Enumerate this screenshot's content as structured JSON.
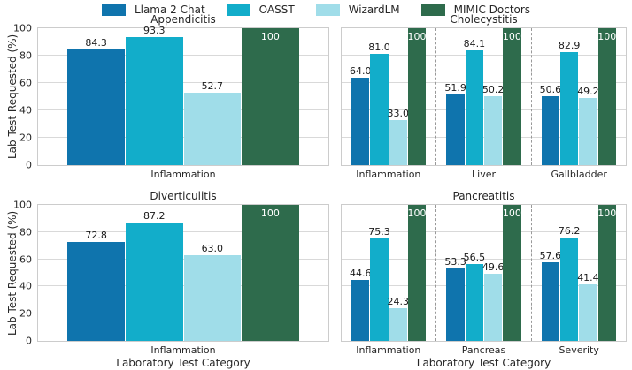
{
  "legend": {
    "items": [
      {
        "label": "Llama 2 Chat",
        "color": "#0f74ad"
      },
      {
        "label": "OASST",
        "color": "#12adca"
      },
      {
        "label": "WizardLM",
        "color": "#a0dde9"
      },
      {
        "label": "MIMIC Doctors",
        "color": "#2e6b4c"
      }
    ]
  },
  "axes": {
    "ylabel": "Lab Test Requested (%)",
    "xlabel": "Laboratory Test Category",
    "yticks": [
      0,
      20,
      40,
      60,
      80,
      100
    ],
    "ylim": [
      0,
      100
    ],
    "grid": "horizontal",
    "grid_color": "#d9d9d9",
    "spine_color": "#cccccc",
    "separator_style": "dashed"
  },
  "chart_data": [
    {
      "type": "bar",
      "title": "Appendicitis",
      "categories": [
        "Inflammation"
      ],
      "series": [
        {
          "name": "Llama 2 Chat",
          "values": [
            84.3
          ]
        },
        {
          "name": "OASST",
          "values": [
            93.3
          ]
        },
        {
          "name": "WizardLM",
          "values": [
            52.7
          ]
        },
        {
          "name": "MIMIC Doctors",
          "values": [
            100
          ],
          "label_inside": true
        }
      ]
    },
    {
      "type": "bar",
      "title": "Cholecystitis",
      "categories": [
        "Inflammation",
        "Liver",
        "Gallbladder"
      ],
      "series": [
        {
          "name": "Llama 2 Chat",
          "values": [
            64.0,
            51.9,
            50.6
          ]
        },
        {
          "name": "OASST",
          "values": [
            81.0,
            84.1,
            82.9
          ]
        },
        {
          "name": "WizardLM",
          "values": [
            33.0,
            50.2,
            49.2
          ]
        },
        {
          "name": "MIMIC Doctors",
          "values": [
            100,
            100,
            100
          ],
          "label_inside": true
        }
      ]
    },
    {
      "type": "bar",
      "title": "Diverticulitis",
      "categories": [
        "Inflammation"
      ],
      "series": [
        {
          "name": "Llama 2 Chat",
          "values": [
            72.8
          ]
        },
        {
          "name": "OASST",
          "values": [
            87.2
          ]
        },
        {
          "name": "WizardLM",
          "values": [
            63.0
          ]
        },
        {
          "name": "MIMIC Doctors",
          "values": [
            100
          ],
          "label_inside": true
        }
      ]
    },
    {
      "type": "bar",
      "title": "Pancreatitis",
      "categories": [
        "Inflammation",
        "Pancreas",
        "Severity"
      ],
      "series": [
        {
          "name": "Llama 2 Chat",
          "values": [
            44.6,
            53.3,
            57.6
          ]
        },
        {
          "name": "OASST",
          "values": [
            75.3,
            56.5,
            76.2
          ]
        },
        {
          "name": "WizardLM",
          "values": [
            24.3,
            49.6,
            41.4
          ]
        },
        {
          "name": "MIMIC Doctors",
          "values": [
            100,
            100,
            100
          ],
          "label_inside": true
        }
      ]
    }
  ]
}
